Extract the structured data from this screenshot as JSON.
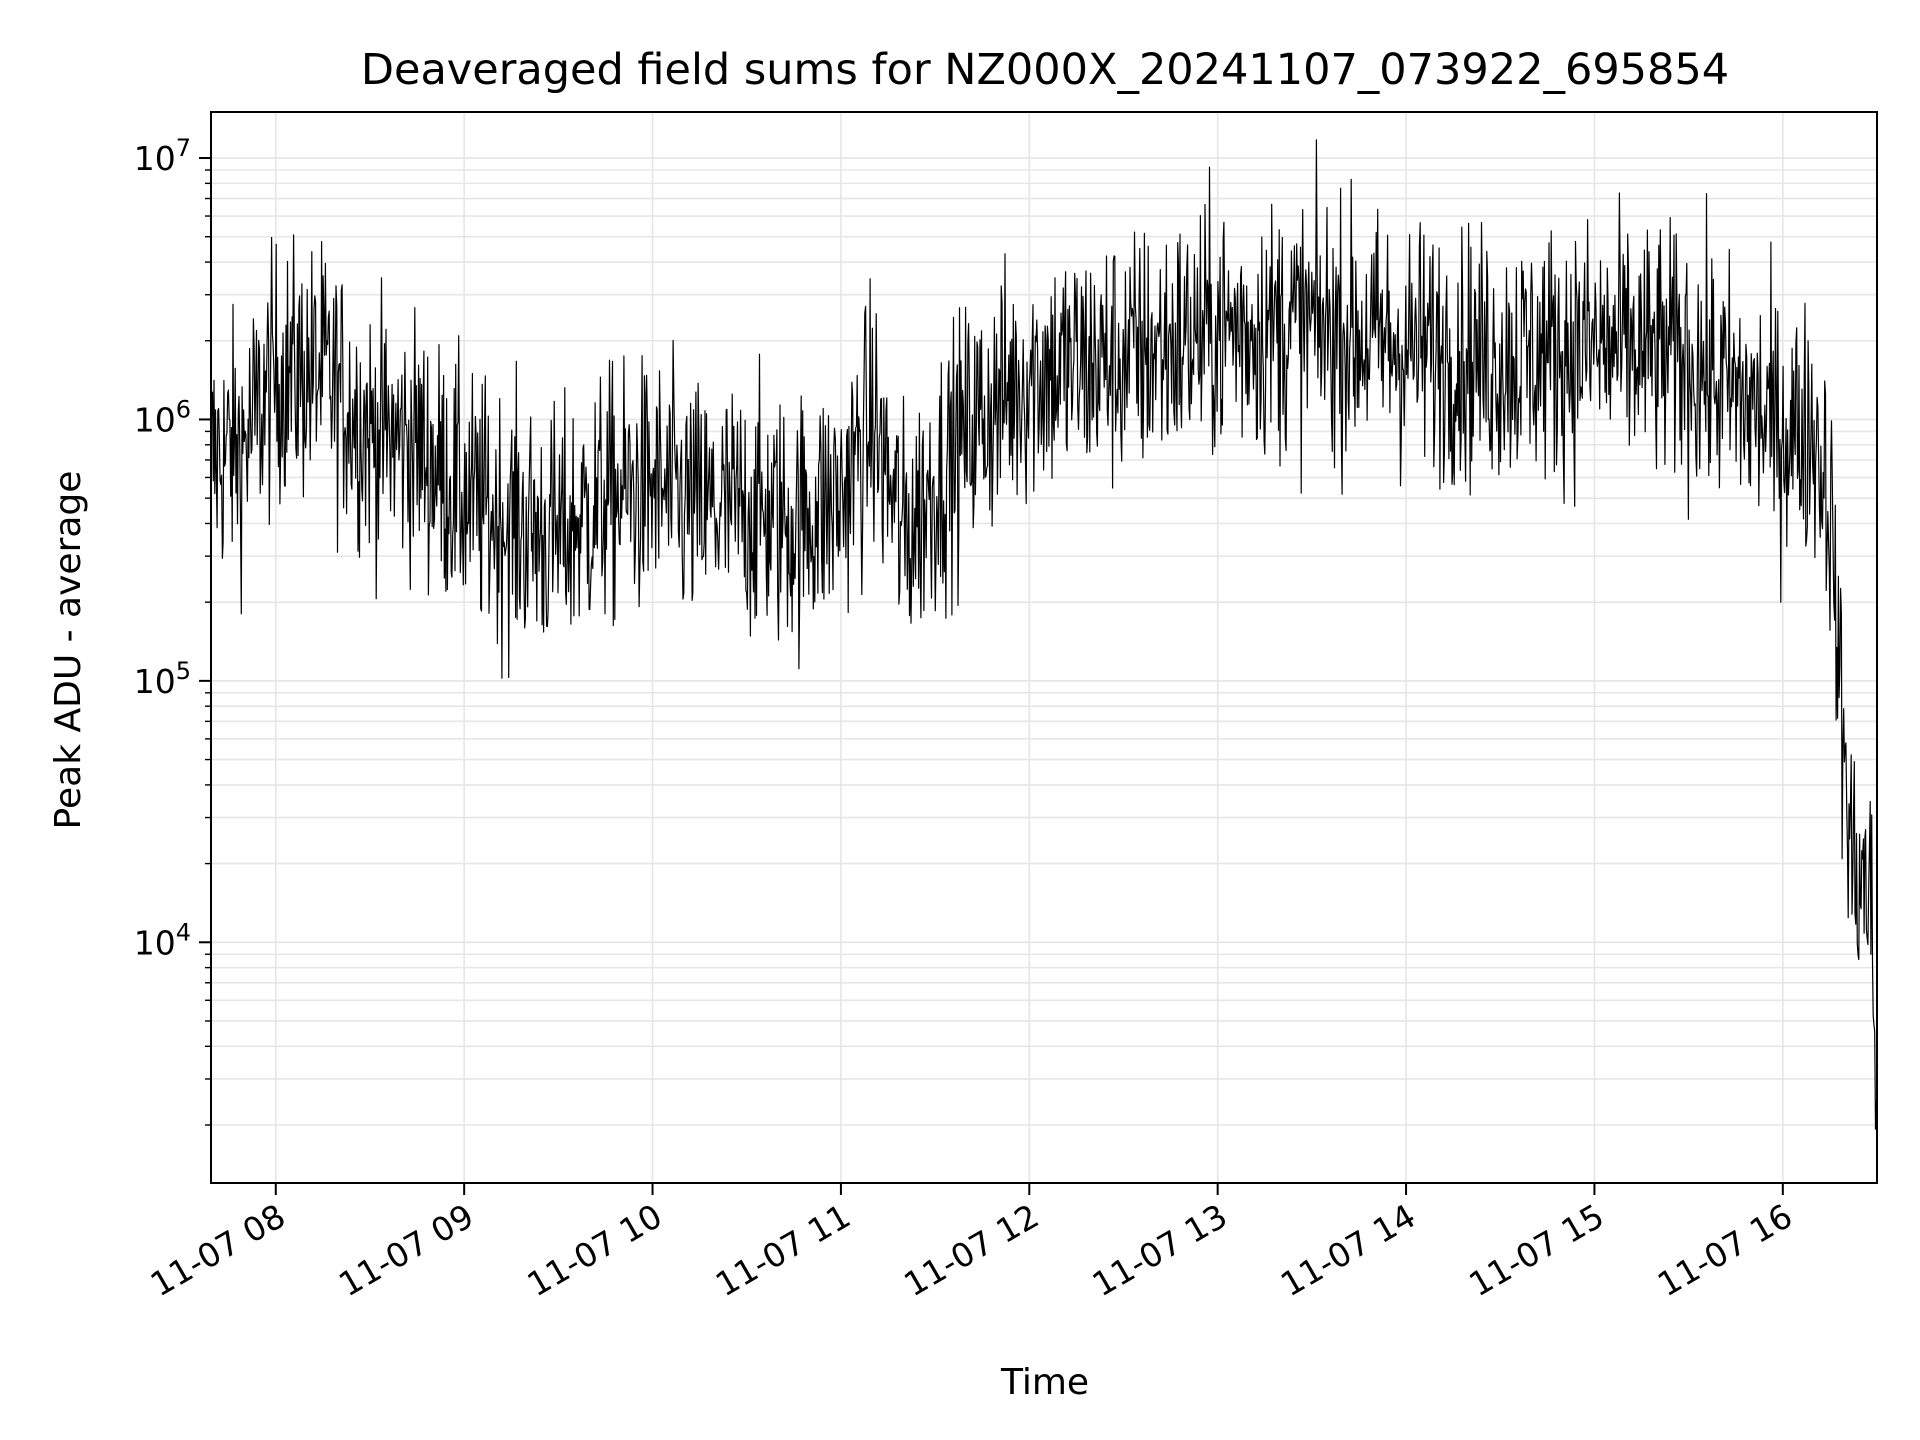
{
  "chart_data": {
    "type": "line",
    "title": "Deaveraged field sums for NZ000X_20241107_073922_695854",
    "xlabel": "Time",
    "ylabel": "Peak ADU - average",
    "yscale": "log",
    "grid": true,
    "grid_minor": true,
    "line_color": "#000000",
    "xlim": [
      "2024-11-07T07:39:22",
      "2024-11-07T16:30:00"
    ],
    "ylim": [
      1200,
      15000000
    ],
    "x_ticks": [
      {
        "value": "2024-11-07T08:00:00",
        "label": "11-07 08"
      },
      {
        "value": "2024-11-07T09:00:00",
        "label": "11-07 09"
      },
      {
        "value": "2024-11-07T10:00:00",
        "label": "11-07 10"
      },
      {
        "value": "2024-11-07T11:00:00",
        "label": "11-07 11"
      },
      {
        "value": "2024-11-07T12:00:00",
        "label": "11-07 12"
      },
      {
        "value": "2024-11-07T13:00:00",
        "label": "11-07 13"
      },
      {
        "value": "2024-11-07T14:00:00",
        "label": "11-07 14"
      },
      {
        "value": "2024-11-07T15:00:00",
        "label": "11-07 15"
      },
      {
        "value": "2024-11-07T16:00:00",
        "label": "11-07 16"
      }
    ],
    "y_ticks": [
      {
        "value": 10000,
        "base": "10",
        "exp": "4"
      },
      {
        "value": 100000,
        "base": "10",
        "exp": "5"
      },
      {
        "value": 1000000,
        "base": "10",
        "exp": "6"
      },
      {
        "value": 10000000,
        "base": "10",
        "exp": "7"
      }
    ],
    "series": [
      {
        "x": [
          "2024-11-07T07:39:22",
          "2024-11-07T07:50:00",
          "2024-11-07T08:00:00",
          "2024-11-07T08:15:00",
          "2024-11-07T08:30:00",
          "2024-11-07T08:45:00",
          "2024-11-07T09:00:00",
          "2024-11-07T09:15:00",
          "2024-11-07T09:30:00",
          "2024-11-07T09:45:00",
          "2024-11-07T10:00:00",
          "2024-11-07T10:15:00",
          "2024-11-07T10:30:00",
          "2024-11-07T10:45:00",
          "2024-11-07T11:00:00",
          "2024-11-07T11:10:00",
          "2024-11-07T11:20:00",
          "2024-11-07T11:40:00",
          "2024-11-07T12:00:00",
          "2024-11-07T12:30:00",
          "2024-11-07T13:00:00",
          "2024-11-07T13:30:00",
          "2024-11-07T14:00:00",
          "2024-11-07T14:30:00",
          "2024-11-07T15:00:00",
          "2024-11-07T15:30:00",
          "2024-11-07T16:00:00",
          "2024-11-07T16:10:00",
          "2024-11-07T16:15:00",
          "2024-11-07T16:18:00",
          "2024-11-07T16:22:00",
          "2024-11-07T16:28:00",
          "2024-11-07T16:30:00"
        ],
        "y": [
          700000,
          800000,
          1500000,
          1500000,
          900000,
          800000,
          500000,
          400000,
          350000,
          500000,
          550000,
          450000,
          450000,
          400000,
          500000,
          1000000,
          350000,
          900000,
          1500000,
          1700000,
          2200000,
          2300000,
          1900000,
          1700000,
          1900000,
          1700000,
          900000,
          900000,
          500000,
          100000,
          20000,
          15000,
          2000
        ],
        "noise_log10": 0.35,
        "points": 2200
      }
    ]
  }
}
